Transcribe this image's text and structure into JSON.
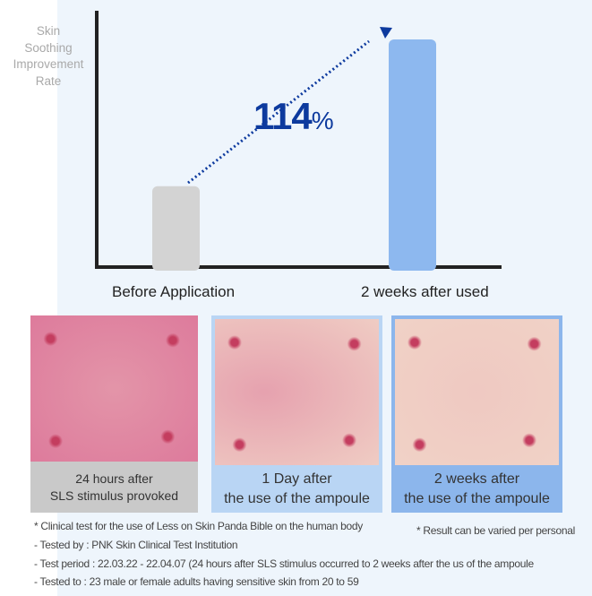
{
  "chart_data": {
    "type": "bar",
    "ylabel": "Skin Soothing Improvement Rate",
    "ylabel_lines": [
      "Skin",
      "Soothing",
      "Improvement",
      "Rate"
    ],
    "categories": [
      "Before Application",
      "2 weeks after used"
    ],
    "values_relative": [
      0.35,
      1.0
    ],
    "bar_colors": [
      "#d3d3d3",
      "#8db8ef"
    ],
    "annotation": {
      "value": "114",
      "unit": "%",
      "color": "#0d3a9e"
    },
    "grid": false,
    "y_ticks": false
  },
  "photos": [
    {
      "caption": [
        "24 hours after",
        "SLS stimulus provoked"
      ]
    },
    {
      "caption": [
        "1 Day after",
        "the use of the ampoule"
      ]
    },
    {
      "caption": [
        "2 weeks after",
        "the use of the ampoule"
      ]
    }
  ],
  "notes": {
    "clinical": "* Clinical test for the use of Less on Skin Panda Bible on the human body",
    "result": "* Result can be varied per personal",
    "tested_by": "- Tested by : PNK Skin Clinical Test Institution",
    "period": "- Test period : 22.03.22 - 22.04.07 (24 hours after SLS stimulus occurred to 2 weeks after the us of the ampoule",
    "tested_to": "- Tested to : 23 male or female adults having sensitive skin from 20 to 59"
  }
}
